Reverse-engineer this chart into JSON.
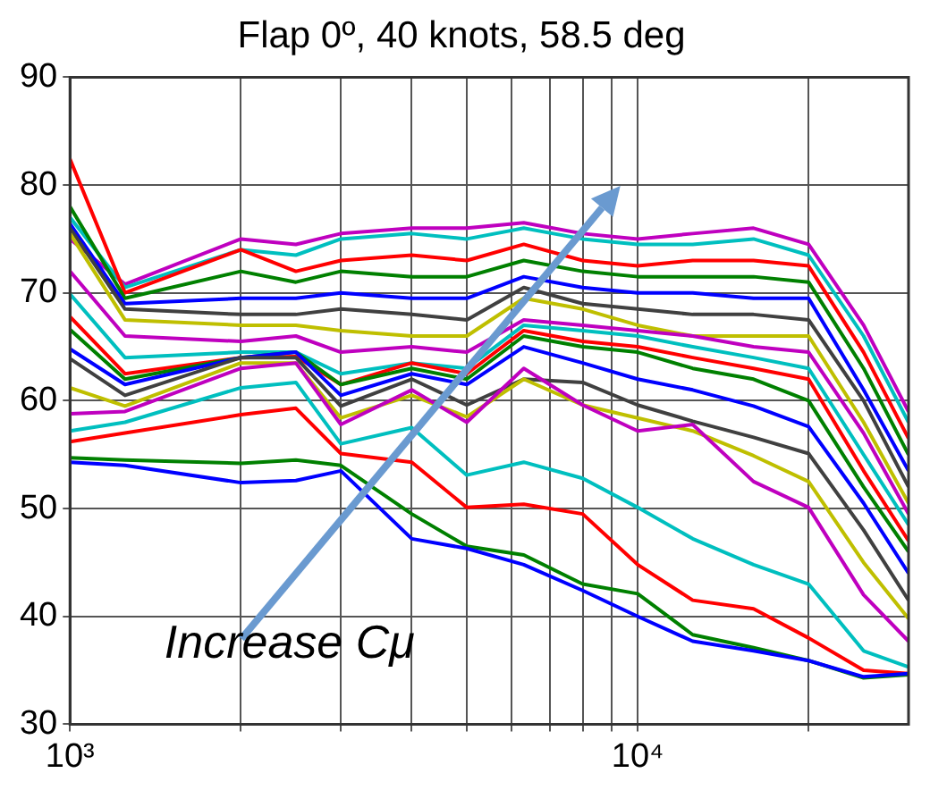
{
  "chart_data": {
    "type": "line",
    "title": "Flap 0º, 40 knots, 58.5 deg",
    "x": [
      1000,
      1250,
      2000,
      2500,
      3000,
      4000,
      5000,
      6300,
      8000,
      10000,
      12500,
      16000,
      20000,
      25000,
      30000
    ],
    "series": [
      {
        "color": "#0000ff",
        "values": [
          54.3,
          54,
          52.4,
          52.6,
          53.5,
          47.2,
          46.3,
          44.8,
          42.4,
          40,
          37.7,
          36.8,
          35.9,
          34.4,
          34.7
        ]
      },
      {
        "color": "#008000",
        "values": [
          54.7,
          54.5,
          54.2,
          54.5,
          54,
          49.5,
          46.5,
          45.7,
          43,
          42.1,
          38.3,
          37.1,
          35.9,
          34.3,
          34.6
        ]
      },
      {
        "color": "#ff0000",
        "values": [
          56.2,
          57,
          58.7,
          59.3,
          55.1,
          54.3,
          50.1,
          50.4,
          49.5,
          44.8,
          41.5,
          40.7,
          38,
          35,
          34.7
        ]
      },
      {
        "color": "#00bfbf",
        "values": [
          57.2,
          58,
          61.2,
          61.7,
          56,
          57.5,
          53.1,
          54.3,
          52.8,
          50.1,
          47.2,
          44.8,
          43,
          36.8,
          35.3
        ]
      },
      {
        "color": "#bf00bf",
        "values": [
          58.8,
          59,
          63,
          63.5,
          57.8,
          61,
          58,
          63,
          59.6,
          57.2,
          57.8,
          52.5,
          50.1,
          42,
          37.7
        ]
      },
      {
        "color": "#bfbf00",
        "values": [
          61.2,
          59.5,
          63.5,
          63.5,
          58.4,
          60.5,
          58.5,
          62,
          59.6,
          58.4,
          57.2,
          54.9,
          52.5,
          45,
          39.8
        ]
      },
      {
        "color": "#404040",
        "values": [
          63.9,
          60.5,
          64,
          64,
          59.5,
          62,
          59.6,
          62,
          61.7,
          59.6,
          58.1,
          56.6,
          55.1,
          48,
          41.5
        ]
      },
      {
        "color": "#0000ff",
        "values": [
          64.8,
          61.5,
          64,
          64.5,
          60.5,
          62.5,
          61.5,
          65,
          63.5,
          62,
          61,
          59.5,
          57.6,
          50.5,
          44
        ]
      },
      {
        "color": "#008000",
        "values": [
          66.6,
          62,
          64,
          64.5,
          61.5,
          63,
          62,
          66,
          65,
          64.5,
          63,
          62,
          60,
          52,
          46
        ]
      },
      {
        "color": "#ff0000",
        "values": [
          67.8,
          62.5,
          64,
          64.1,
          61.5,
          63.5,
          62.5,
          66.5,
          65.5,
          65,
          64,
          63,
          62,
          53.5,
          47
        ]
      },
      {
        "color": "#00bfbf",
        "values": [
          69.9,
          64,
          64.5,
          64.5,
          62.5,
          63.5,
          63,
          67,
          66.5,
          66,
          65,
          64,
          63,
          55,
          48.5
        ]
      },
      {
        "color": "#bf00bf",
        "values": [
          72,
          66,
          65.5,
          66,
          64.5,
          65,
          64.5,
          67.5,
          67,
          66.5,
          66,
          65,
          64.5,
          57,
          49.5
        ]
      },
      {
        "color": "#bfbf00",
        "values": [
          75.5,
          67.5,
          67,
          67,
          66.5,
          66,
          66,
          69.5,
          68.5,
          67,
          66,
          66,
          66,
          58,
          50.5
        ]
      },
      {
        "color": "#404040",
        "values": [
          76,
          68.5,
          68,
          68,
          68.5,
          68,
          67.5,
          70.5,
          69,
          68.5,
          68,
          68,
          67.5,
          60,
          52
        ]
      },
      {
        "color": "#0000ff",
        "values": [
          76.4,
          69,
          69.5,
          69.5,
          70,
          69.5,
          69.5,
          71.5,
          70.5,
          70,
          70,
          69.5,
          69.5,
          61,
          53.5
        ]
      },
      {
        "color": "#008000",
        "values": [
          78,
          69.5,
          72,
          71,
          72,
          71.5,
          71.5,
          73,
          72,
          71.5,
          71.5,
          71.5,
          71,
          63,
          55
        ]
      },
      {
        "color": "#ff0000",
        "values": [
          82.4,
          70,
          74,
          72,
          73,
          73.5,
          73,
          74.5,
          73,
          72.5,
          73,
          73,
          72.5,
          64.5,
          56.5
        ]
      },
      {
        "color": "#00bfbf",
        "values": [
          77,
          70.5,
          74,
          73.5,
          75,
          75.5,
          75,
          76,
          75,
          74.5,
          74.5,
          75,
          73.5,
          66,
          58
        ]
      },
      {
        "color": "#bf00bf",
        "values": [
          75,
          70.8,
          75,
          74.5,
          75.5,
          76,
          76,
          76.5,
          75.5,
          75,
          75.5,
          76,
          74.5,
          67,
          59
        ]
      }
    ],
    "log": "x",
    "xlim": [
      1000,
      30000
    ],
    "xticks": [
      {
        "value": 1000,
        "label": "10³"
      },
      {
        "value": 2000,
        "label": null
      },
      {
        "value": 3000,
        "label": null
      },
      {
        "value": 4000,
        "label": null
      },
      {
        "value": 5000,
        "label": null
      },
      {
        "value": 6000,
        "label": null
      },
      {
        "value": 7000,
        "label": null
      },
      {
        "value": 8000,
        "label": null
      },
      {
        "value": 9000,
        "label": null
      },
      {
        "value": 10000,
        "label": "10⁴"
      },
      {
        "value": 20000,
        "label": null
      }
    ],
    "ylim": [
      30,
      90
    ],
    "yticks": [
      30,
      40,
      50,
      60,
      70,
      80,
      90
    ],
    "grid": true,
    "legend": false,
    "marker": "none",
    "line_style": "solid",
    "annotations": [
      "Increase Cμ"
    ]
  }
}
